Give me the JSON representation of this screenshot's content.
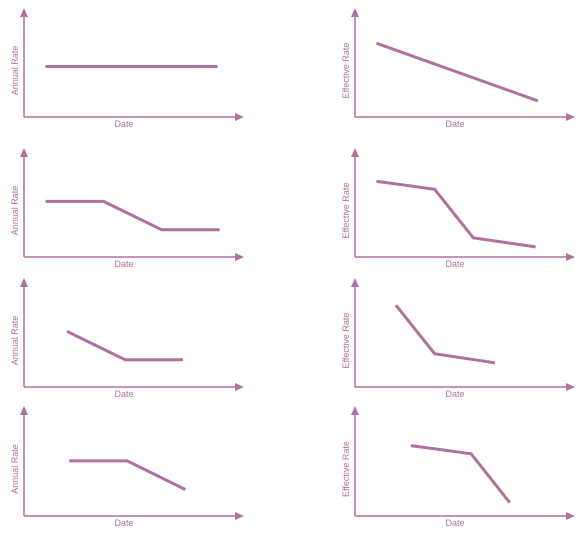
{
  "colors": {
    "accent": "#b0719f"
  },
  "chart_data": [
    {
      "type": "line",
      "xlabel": "Date",
      "ylabel": "Annual Rate",
      "xlim": [
        0,
        10
      ],
      "ylim": [
        0,
        10
      ],
      "x": [
        1,
        9
      ],
      "values": [
        5,
        5
      ]
    },
    {
      "type": "line",
      "xlabel": "Date",
      "ylabel": "Effective Rate",
      "xlim": [
        0,
        10
      ],
      "ylim": [
        0,
        10
      ],
      "x": [
        1,
        8.5
      ],
      "values": [
        7.3,
        1.6
      ]
    },
    {
      "type": "line",
      "xlabel": "Date",
      "ylabel": "Annual Rate",
      "xlim": [
        0,
        10
      ],
      "ylim": [
        0,
        10
      ],
      "x": [
        1,
        3.7,
        6.4,
        9.1
      ],
      "values": [
        5.5,
        5.5,
        2.7,
        2.7
      ]
    },
    {
      "type": "line",
      "xlabel": "Date",
      "ylabel": "Effective Rate",
      "xlim": [
        0,
        10
      ],
      "ylim": [
        0,
        10
      ],
      "x": [
        1,
        3.7,
        5.5,
        8.4
      ],
      "values": [
        7.5,
        6.7,
        1.9,
        1.0
      ]
    },
    {
      "type": "line",
      "xlabel": "Date",
      "ylabel": "Annual Rate",
      "xlim": [
        0,
        10
      ],
      "ylim": [
        0,
        10
      ],
      "x": [
        2,
        4.7,
        7.4
      ],
      "values": [
        5.5,
        2.7,
        2.7
      ]
    },
    {
      "type": "line",
      "xlabel": "Date",
      "ylabel": "Effective Rate",
      "xlim": [
        0,
        10
      ],
      "ylim": [
        0,
        10
      ],
      "x": [
        1.9,
        3.7,
        6.5
      ],
      "values": [
        8.1,
        3.3,
        2.4
      ]
    },
    {
      "type": "line",
      "xlabel": "Date",
      "ylabel": "Annual Rate",
      "xlim": [
        0,
        10
      ],
      "ylim": [
        0,
        10
      ],
      "x": [
        2.1,
        4.8,
        7.5
      ],
      "values": [
        5.4,
        5.4,
        2.6
      ]
    },
    {
      "type": "line",
      "xlabel": "Date",
      "ylabel": "Effective Rate",
      "xlim": [
        0,
        10
      ],
      "ylim": [
        0,
        10
      ],
      "x": [
        2.6,
        5.4,
        7.2
      ],
      "values": [
        6.9,
        6.1,
        1.3
      ]
    }
  ]
}
